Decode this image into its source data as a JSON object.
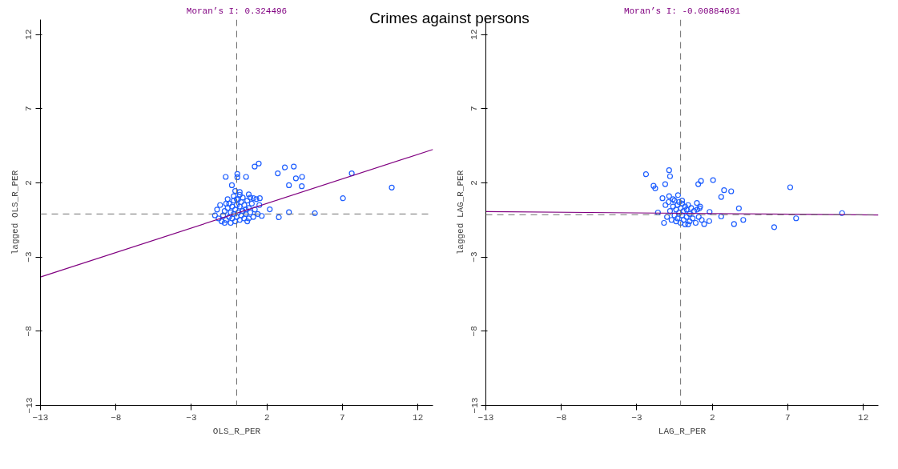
{
  "chart_data": [
    {
      "type": "scatter",
      "title": "Moran’s I: 0.324496",
      "annotations": [
        "Crimes against persons"
      ],
      "xlabel": "OLS_R_PER",
      "ylabel": "lagged OLS_R_PER",
      "xlim": [
        -13,
        13
      ],
      "ylim": [
        -13,
        13
      ],
      "xticks": [
        -13,
        -8,
        -3,
        2,
        7,
        12
      ],
      "yticks": [
        -13,
        -8,
        -3,
        2,
        7,
        12
      ],
      "grid": false,
      "ref_lines": [
        {
          "axis": "x",
          "value": 0,
          "color": "#707070",
          "line_style": "dashed"
        },
        {
          "axis": "y",
          "value": -0.1,
          "color": "#707070",
          "line_style": "dashed"
        }
      ],
      "series": [
        {
          "marker": "circle",
          "color": "#1e5eff",
          "x": [
            1.46,
            1.19,
            3.19,
            3.78,
            2.72,
            -0.73,
            0.04,
            0.04,
            0.62,
            4.33,
            3.92,
            7.62,
            10.27,
            3.46,
            4.31,
            -0.32,
            7.04,
            3.46,
            5.18,
            2.79,
            2.19,
            1.66,
            -1.44,
            1.53,
            1.12,
            0.8,
            -0.1,
            0.2,
            -1.2,
            -1.0,
            -0.9,
            -0.8,
            -0.7,
            -0.6,
            -0.5,
            -0.5,
            -0.4,
            -0.4,
            -0.3,
            -0.3,
            -0.2,
            -0.2,
            -0.1,
            -0.1,
            0.0,
            0.0,
            0.1,
            0.1,
            0.2,
            0.2,
            0.3,
            0.3,
            0.4,
            0.4,
            0.5,
            0.5,
            0.6,
            0.6,
            0.7,
            0.7,
            0.8,
            0.9,
            1.0,
            1.1,
            1.2,
            1.3,
            1.4,
            -1.3,
            -1.1,
            -0.8,
            -0.6,
            -0.2,
            0.2,
            0.8,
            1.5,
            -0.7,
            0.0,
            0.9
          ],
          "values": [
            3.3,
            3.1,
            3.04,
            3.1,
            2.64,
            2.4,
            2.6,
            2.38,
            2.4,
            2.4,
            2.3,
            2.64,
            1.68,
            1.84,
            1.77,
            1.84,
            0.96,
            0.02,
            -0.05,
            -0.32,
            0.21,
            -0.23,
            -0.2,
            0.96,
            0.96,
            1.22,
            1.45,
            1.38,
            -0.4,
            -0.6,
            -0.2,
            0.1,
            -0.5,
            0.3,
            -0.3,
            0.6,
            -0.7,
            0.0,
            0.4,
            -0.4,
            0.8,
            -0.1,
            0.2,
            -0.6,
            0.5,
            -0.3,
            0.9,
            0.0,
            -0.5,
            0.4,
            0.7,
            -0.2,
            0.1,
            1.0,
            -0.4,
            0.5,
            0.2,
            -0.1,
            0.8,
            -0.6,
            0.3,
            0.0,
            0.6,
            -0.3,
            0.2,
            0.9,
            -0.1,
            0.2,
            0.5,
            -0.7,
            0.9,
            1.1,
            1.2,
            -0.4,
            0.5,
            0.6,
            0.9,
            1.0
          ]
        },
        {
          "type": "line",
          "marker": "none",
          "color": "#800080",
          "x": [
            -13,
            13
          ],
          "values": [
            -4.35,
            4.25
          ]
        }
      ]
    },
    {
      "type": "scatter",
      "title": "Moran’s I: -0.00884691",
      "xlabel": "LAG_R_PER",
      "ylabel": "lagged LAG_R_PER",
      "xlim": [
        -13,
        13
      ],
      "ylim": [
        -13,
        13
      ],
      "xticks": [
        -13,
        -8,
        -3,
        2,
        7,
        12
      ],
      "yticks": [
        -13,
        -8,
        -3,
        2,
        7,
        12
      ],
      "grid": false,
      "ref_lines": [
        {
          "axis": "x",
          "value": -0.1,
          "color": "#707070",
          "line_style": "dashed"
        },
        {
          "axis": "y",
          "value": -0.15,
          "color": "#707070",
          "line_style": "dashed"
        }
      ],
      "series": [
        {
          "marker": "circle",
          "color": "#1e5eff",
          "x": [
            -2.39,
            -0.86,
            -0.8,
            -1.89,
            -1.78,
            -1.12,
            1.25,
            1.07,
            2.05,
            2.78,
            3.25,
            2.59,
            7.16,
            3.76,
            10.6,
            7.55,
            6.1,
            4.05,
            3.44,
            2.59,
            1.82,
            1.8,
            1.46,
            1.16,
            0.98,
            -1.6,
            -1.2,
            -0.27,
            -0.86,
            -1.3,
            -1.1,
            -1.0,
            -0.9,
            -0.8,
            -0.7,
            -0.6,
            -0.5,
            -0.5,
            -0.4,
            -0.4,
            -0.3,
            -0.3,
            -0.2,
            -0.2,
            -0.1,
            -0.1,
            0.0,
            0.0,
            0.1,
            0.1,
            0.2,
            0.2,
            0.3,
            0.3,
            0.4,
            0.5,
            0.5,
            0.6,
            0.7,
            0.8,
            0.9,
            1.0,
            1.1,
            1.2,
            1.3,
            -0.6,
            0.0,
            0.4
          ],
          "values": [
            2.58,
            2.85,
            2.44,
            1.8,
            1.63,
            1.91,
            2.12,
            1.91,
            2.18,
            1.5,
            1.43,
            1.05,
            1.7,
            0.28,
            -0.04,
            -0.39,
            -0.99,
            -0.5,
            -0.78,
            -0.27,
            0.04,
            -0.58,
            -0.78,
            0.28,
            0.64,
            0.0,
            -0.7,
            1.17,
            1.1,
            0.96,
            0.5,
            -0.3,
            0.7,
            0.1,
            -0.5,
            0.4,
            -0.2,
            0.8,
            -0.6,
            0.2,
            0.5,
            -0.4,
            0.0,
            0.7,
            -0.7,
            0.3,
            0.6,
            -0.2,
            0.1,
            -0.5,
            0.4,
            -0.8,
            0.2,
            -0.3,
            0.5,
            -0.1,
            -0.6,
            0.3,
            -0.4,
            0.1,
            -0.7,
            0.2,
            -0.3,
            0.4,
            -0.5,
            0.9,
            0.8,
            -0.8
          ]
        },
        {
          "type": "line",
          "marker": "none",
          "color": "#800080",
          "x": [
            -13,
            13
          ],
          "values": [
            0.06,
            -0.17
          ]
        }
      ]
    }
  ]
}
